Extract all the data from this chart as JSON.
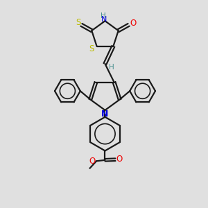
{
  "background_color": "#e0e0e0",
  "line_color": "#1a1a1a",
  "bond_width": 1.6,
  "N_color": "#0000dd",
  "O_color": "#ee0000",
  "S_color": "#bbbb00",
  "H_color": "#4a9090",
  "figsize": [
    3.0,
    3.0
  ],
  "dpi": 100,
  "xlim": [
    0,
    10
  ],
  "ylim": [
    0,
    10
  ]
}
